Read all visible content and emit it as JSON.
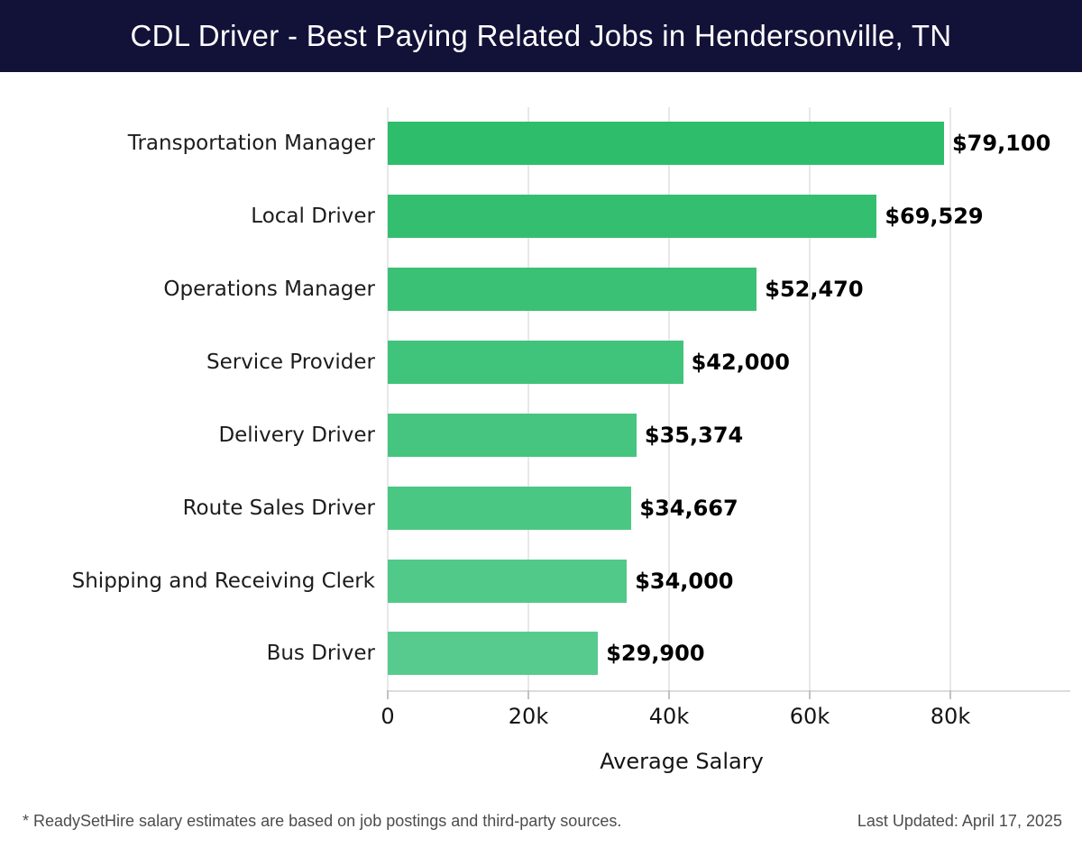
{
  "header": {
    "title": "CDL Driver - Best Paying Related Jobs in Hendersonville, TN"
  },
  "chart_data": {
    "type": "bar",
    "orientation": "horizontal",
    "title": "CDL Driver - Best Paying Related Jobs in Hendersonville, TN",
    "categories": [
      "Transportation Manager",
      "Local Driver",
      "Operations Manager",
      "Service Provider",
      "Delivery Driver",
      "Route Sales Driver",
      "Shipping and Receiving Clerk",
      "Bus Driver"
    ],
    "values": [
      79100,
      69529,
      52470,
      42000,
      35374,
      34667,
      34000,
      29900
    ],
    "value_labels": [
      "$79,100",
      "$69,529",
      "$52,470",
      "$42,000",
      "$35,374",
      "$34,667",
      "$34,000",
      "$29,900"
    ],
    "xlabel": "Average Salary",
    "xticks": [
      {
        "value": 0,
        "label": "0"
      },
      {
        "value": 20000,
        "label": "20k"
      },
      {
        "value": 40000,
        "label": "40k"
      },
      {
        "value": 60000,
        "label": "60k"
      },
      {
        "value": 80000,
        "label": "80k"
      }
    ],
    "xlim": [
      0,
      80000
    ],
    "grid": true,
    "legend": false,
    "bar_colors": [
      "#2ebd6b",
      "#34bf70",
      "#3ac175",
      "#40c37a",
      "#45c57f",
      "#4bc784",
      "#51c989",
      "#57cb8e"
    ],
    "colors": {
      "header_bg": "#121138",
      "title_text": "#ffffff",
      "gridline": "#e8e8e8",
      "axis_line": "#dcdcdc",
      "tick": "#c2c2c2",
      "category_text": "#1c1c1c",
      "value_text": "#000000",
      "footer_text": "#4c4c4c"
    }
  },
  "footer": {
    "note": "* ReadySetHire salary estimates are based on job postings and third-party sources.",
    "last_updated": "Last Updated: April 17, 2025"
  }
}
